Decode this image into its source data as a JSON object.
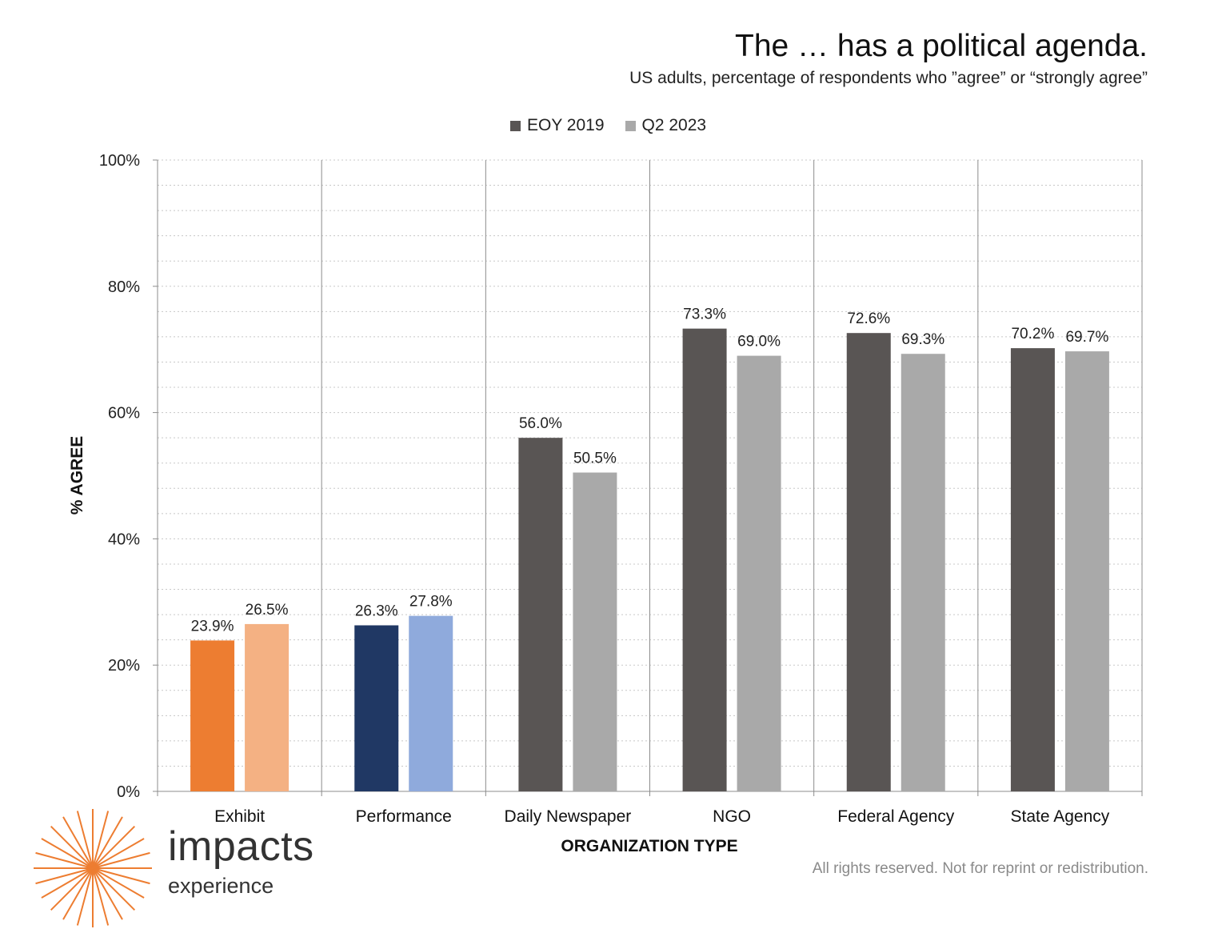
{
  "header": {
    "title": "The … has a political agenda.",
    "subtitle": "US adults, percentage of respondents who ”agree” or “strongly agree”"
  },
  "legend": {
    "items": [
      {
        "label": "EOY 2019",
        "color": "#595554"
      },
      {
        "label": "Q2 2023",
        "color": "#a9a9a9"
      }
    ]
  },
  "chart_data": {
    "type": "bar",
    "categories": [
      "Exhibit",
      "Performance",
      "Daily Newspaper",
      "NGO",
      "Federal Agency",
      "State Agency"
    ],
    "series": [
      {
        "name": "EOY 2019",
        "values": [
          23.9,
          26.3,
          56.0,
          73.3,
          72.6,
          70.2
        ],
        "colors": [
          "#ed7d31",
          "#203864",
          "#595554",
          "#595554",
          "#595554",
          "#595554"
        ]
      },
      {
        "name": "Q2 2023",
        "values": [
          26.5,
          27.8,
          50.5,
          69.0,
          69.3,
          69.7
        ],
        "colors": [
          "#f4b183",
          "#8faadc",
          "#a9a9a9",
          "#a9a9a9",
          "#a9a9a9",
          "#a9a9a9"
        ]
      }
    ],
    "data_labels": [
      [
        "23.9%",
        "26.3%",
        "56.0%",
        "73.3%",
        "72.6%",
        "70.2%"
      ],
      [
        "26.5%",
        "27.8%",
        "50.5%",
        "69.0%",
        "69.3%",
        "69.7%"
      ]
    ],
    "yticks": [
      0,
      20,
      40,
      60,
      80,
      100
    ],
    "ytick_labels": [
      "0%",
      "20%",
      "40%",
      "60%",
      "80%",
      "100%"
    ],
    "ylim": [
      0,
      100
    ],
    "xlabel": "ORGANIZATION TYPE",
    "ylabel": "% AGREE",
    "grid": true,
    "legend_position": "top-center"
  },
  "footer": {
    "rights": "All rights reserved. Not for reprint or redistribution."
  },
  "logo": {
    "word": "impacts",
    "sub": "experience",
    "color": "#ed7d31"
  }
}
